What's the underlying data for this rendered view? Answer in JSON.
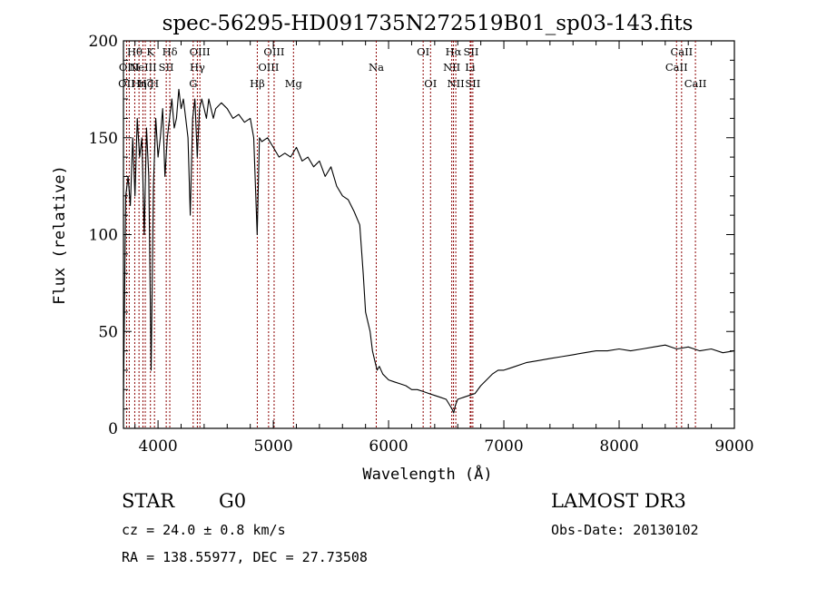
{
  "chart_data": {
    "type": "line",
    "title": "spec-56295-HD091735N272519B01_sp03-143.fits",
    "xlabel": "Wavelength (Å)",
    "ylabel": "Flux (relative)",
    "xlim": [
      3700,
      9000
    ],
    "ylim": [
      0,
      200
    ],
    "xticks": [
      4000,
      5000,
      6000,
      7000,
      8000,
      9000
    ],
    "yticks": [
      0,
      50,
      100,
      150,
      200
    ],
    "line_color": "#000000",
    "marker_color": "#8b0000",
    "series": [
      {
        "name": "flux",
        "x": [
          3700,
          3720,
          3740,
          3760,
          3780,
          3800,
          3820,
          3840,
          3860,
          3880,
          3900,
          3920,
          3940,
          3960,
          3980,
          4000,
          4020,
          4040,
          4060,
          4080,
          4100,
          4120,
          4140,
          4160,
          4180,
          4200,
          4220,
          4240,
          4260,
          4280,
          4300,
          4320,
          4340,
          4360,
          4380,
          4400,
          4420,
          4440,
          4460,
          4480,
          4500,
          4550,
          4600,
          4650,
          4700,
          4750,
          4800,
          4830,
          4860,
          4880,
          4900,
          4950,
          5000,
          5050,
          5100,
          5150,
          5200,
          5250,
          5300,
          5350,
          5400,
          5450,
          5500,
          5550,
          5600,
          5650,
          5700,
          5750,
          5780,
          5800,
          5820,
          5840,
          5860,
          5880,
          5900,
          5920,
          5950,
          6000,
          6050,
          6100,
          6150,
          6200,
          6250,
          6300,
          6350,
          6400,
          6450,
          6500,
          6530,
          6550,
          6565,
          6580,
          6600,
          6650,
          6700,
          6750,
          6800,
          6850,
          6900,
          6950,
          7000,
          7050,
          7100,
          7150,
          7200,
          7300,
          7400,
          7500,
          7600,
          7700,
          7800,
          7900,
          8000,
          8100,
          8200,
          8300,
          8400,
          8500,
          8600,
          8700,
          8800,
          8900,
          9000
        ],
        "values": [
          15,
          120,
          130,
          115,
          150,
          120,
          160,
          140,
          150,
          100,
          155,
          130,
          30,
          125,
          160,
          140,
          150,
          165,
          130,
          150,
          160,
          170,
          155,
          160,
          175,
          165,
          170,
          160,
          150,
          110,
          160,
          170,
          140,
          165,
          170,
          165,
          160,
          170,
          165,
          160,
          165,
          168,
          165,
          160,
          162,
          158,
          160,
          150,
          100,
          150,
          148,
          150,
          145,
          140,
          142,
          140,
          145,
          138,
          140,
          135,
          138,
          130,
          135,
          125,
          120,
          118,
          112,
          105,
          80,
          60,
          55,
          50,
          40,
          35,
          30,
          32,
          28,
          25,
          24,
          23,
          22,
          20,
          20,
          19,
          18,
          17,
          16,
          15,
          12,
          10,
          8,
          12,
          15,
          16,
          17,
          18,
          22,
          25,
          28,
          30,
          30,
          31,
          32,
          33,
          34,
          35,
          36,
          37,
          38,
          39,
          40,
          40,
          41,
          40,
          41,
          42,
          43,
          41,
          42,
          40,
          41,
          39,
          40
        ]
      }
    ],
    "lines": [
      {
        "w": 3727,
        "label": "OII",
        "row": 2
      },
      {
        "w": 3750,
        "label": "OIII",
        "row": 1
      },
      {
        "w": 3798,
        "label": "Hθ",
        "row": 0
      },
      {
        "w": 3835,
        "label": "Hη",
        "row": 2
      },
      {
        "w": 3869,
        "label": "NeIII",
        "row": 1
      },
      {
        "w": 3889,
        "label": "Hζ",
        "row": 2
      },
      {
        "w": 3934,
        "label": "K",
        "row": 0
      },
      {
        "w": 3969,
        "label": "H",
        "row": 2
      },
      {
        "w": 4071,
        "label": "SII",
        "row": 1
      },
      {
        "w": 4102,
        "label": "Hδ",
        "row": 0
      },
      {
        "w": 4305,
        "label": "G",
        "row": 2
      },
      {
        "w": 4341,
        "label": "Hγ",
        "row": 1
      },
      {
        "w": 4363,
        "label": "OIII",
        "row": 0
      },
      {
        "w": 4861,
        "label": "Hβ",
        "row": 2
      },
      {
        "w": 4959,
        "label": "OIII",
        "row": 1
      },
      {
        "w": 5007,
        "label": "OIII",
        "row": 0
      },
      {
        "w": 5175,
        "label": "Mg",
        "row": 2
      },
      {
        "w": 5893,
        "label": "Na",
        "row": 1
      },
      {
        "w": 6300,
        "label": "OI",
        "row": 0
      },
      {
        "w": 6364,
        "label": "OI",
        "row": 2
      },
      {
        "w": 6548,
        "label": "NII",
        "row": 1
      },
      {
        "w": 6563,
        "label": "Hα",
        "row": 0
      },
      {
        "w": 6583,
        "label": "NII",
        "row": 2
      },
      {
        "w": 6708,
        "label": "Li",
        "row": 1
      },
      {
        "w": 6716,
        "label": "SII",
        "row": 0
      },
      {
        "w": 6731,
        "label": "SII",
        "row": 2
      },
      {
        "w": 8498,
        "label": "CaII",
        "row": 1
      },
      {
        "w": 8542,
        "label": "CaII",
        "row": 0
      },
      {
        "w": 8662,
        "label": "CaII",
        "row": 2
      }
    ]
  },
  "footer": {
    "object_type": "STAR",
    "subclass": "G0",
    "survey": "LAMOST DR3",
    "redshift": "cz = 24.0 ± 0.8 km/s",
    "obs_date": "Obs-Date: 20130102",
    "coords": "RA = 138.55977, DEC =  27.73508"
  }
}
